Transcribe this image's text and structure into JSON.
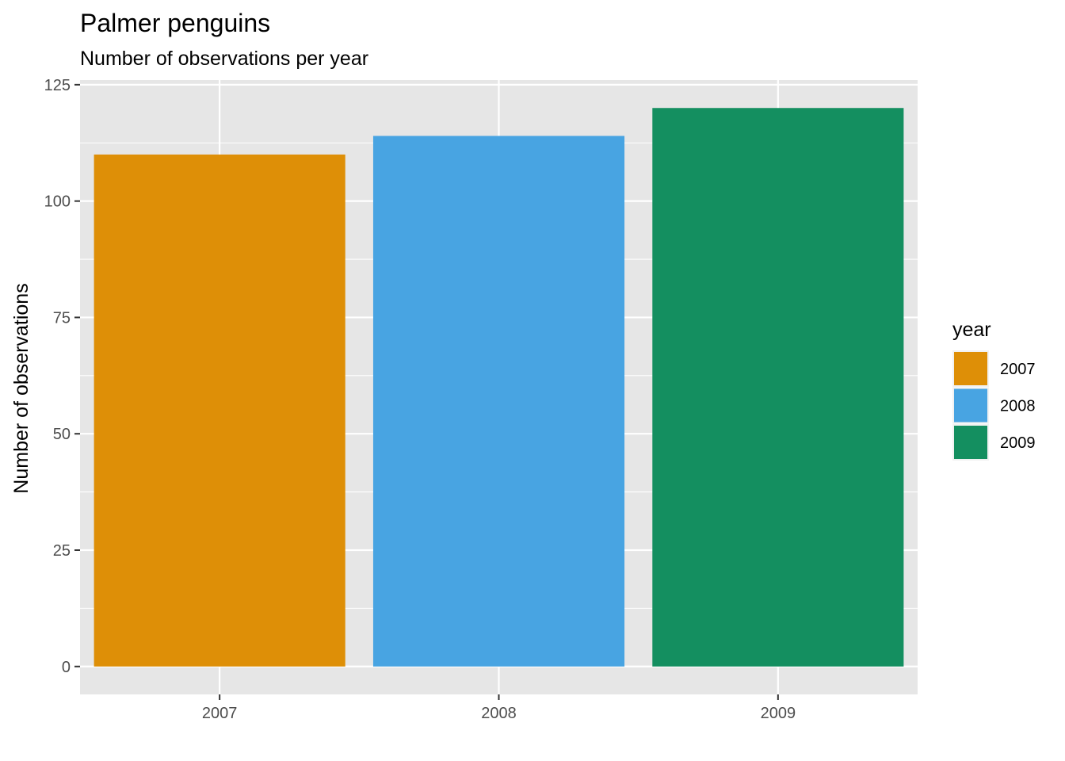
{
  "chart_data": {
    "type": "bar",
    "title": "Palmer penguins",
    "subtitle": "Number of observations per year",
    "xlabel": "",
    "ylabel": "Number of observations",
    "categories": [
      "2007",
      "2008",
      "2009"
    ],
    "values": [
      110,
      114,
      120
    ],
    "colors": [
      "#DE8F07",
      "#48A4E2",
      "#148F60"
    ],
    "ylim": [
      -6,
      126
    ],
    "yticks": [
      0,
      25,
      50,
      75,
      100,
      125
    ],
    "y_minor_ticks": [
      12.5,
      37.5,
      62.5,
      87.5,
      112.5
    ],
    "grid": true,
    "panel_color": "#E6E6E6",
    "legend": {
      "title": "year",
      "position": "right",
      "entries": [
        "2007",
        "2008",
        "2009"
      ]
    }
  }
}
